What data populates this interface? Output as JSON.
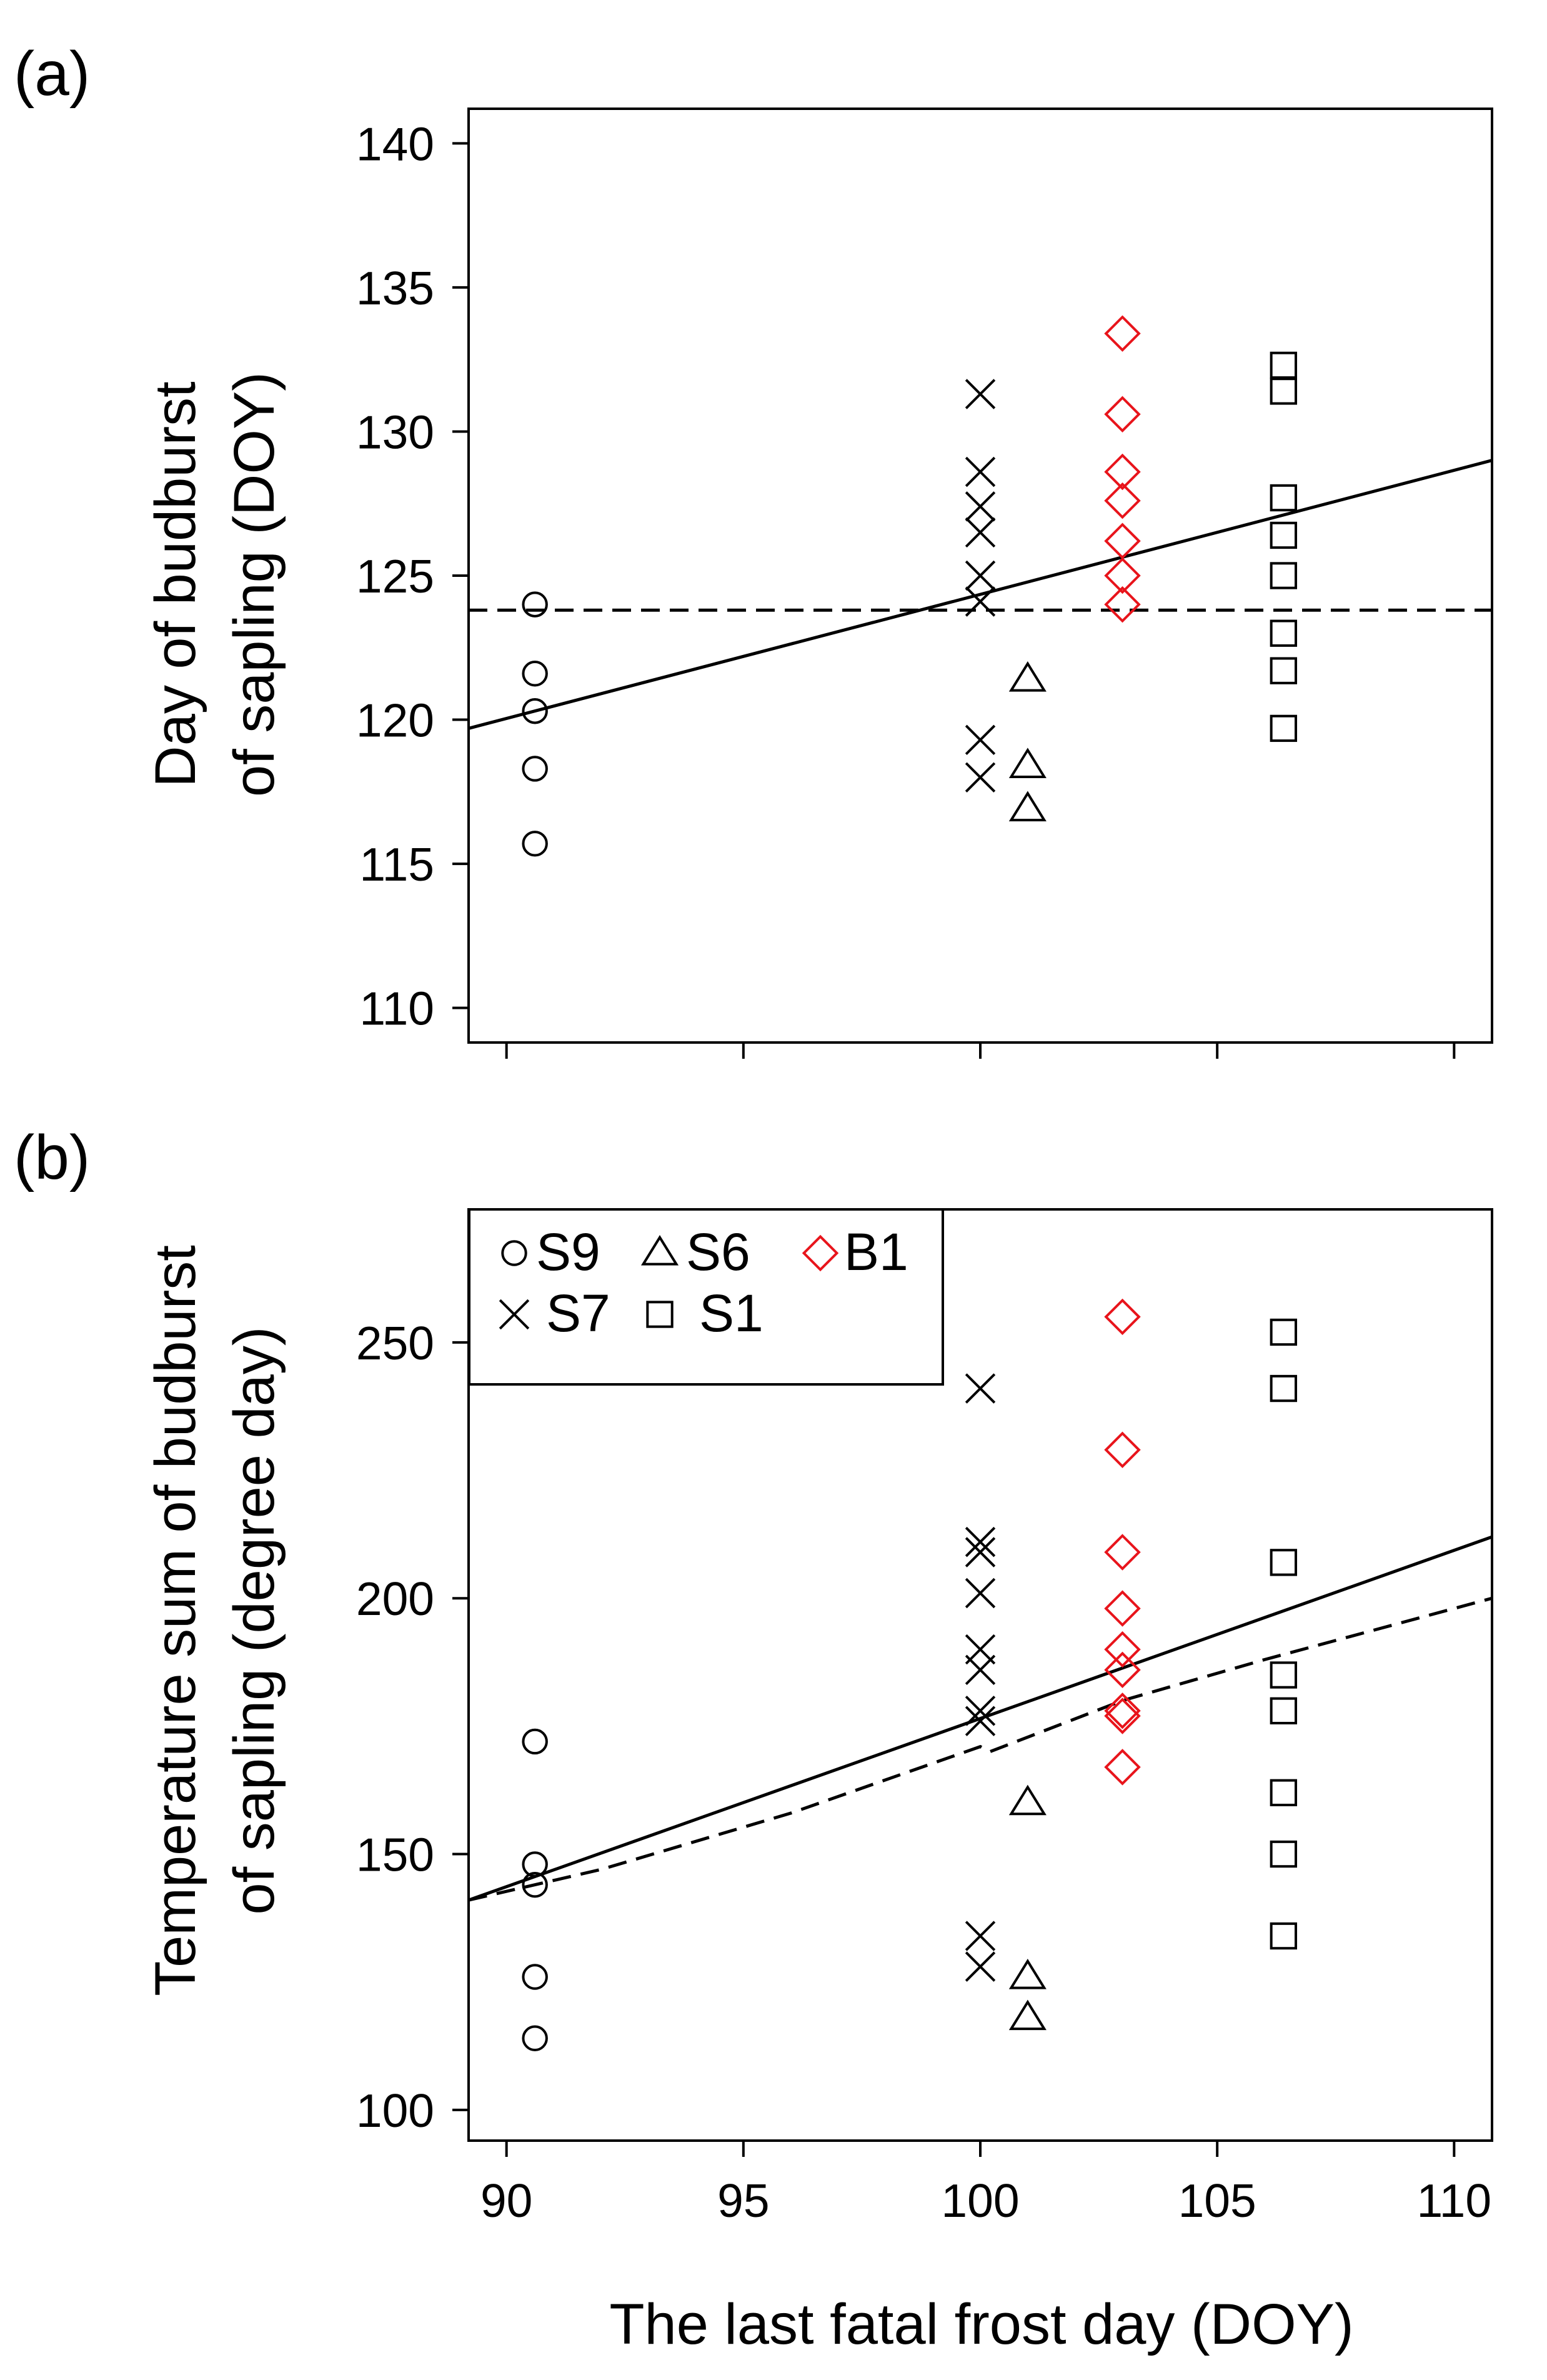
{
  "chart_data": [
    {
      "type": "scatter",
      "panel_label": "(a)",
      "ylabel_line1": "Day of budburst",
      "ylabel_line2": "of sapling (DOY)",
      "xlabel": "",
      "xlim": [
        89.2,
        110.8
      ],
      "ylim": [
        108.8,
        141.2
      ],
      "xticks": [
        90,
        95,
        100,
        105,
        110
      ],
      "yticks": [
        110,
        115,
        120,
        125,
        130,
        135,
        140
      ],
      "ytick_labels": [
        "110",
        "115",
        "120",
        "125",
        "130",
        "135",
        "140"
      ],
      "series": [
        {
          "name": "S9",
          "marker": "circle",
          "color": "#000000",
          "x": 90.6,
          "values": [
            124.0,
            121.6,
            120.3,
            118.3,
            115.7
          ]
        },
        {
          "name": "S7",
          "marker": "cross",
          "color": "#000000",
          "x": 100.0,
          "values": [
            131.3,
            128.6,
            127.4,
            126.5,
            125.0,
            124.1,
            119.3,
            118.0
          ]
        },
        {
          "name": "S6",
          "marker": "triangle",
          "color": "#000000",
          "x": 101.0,
          "values": [
            121.4,
            118.4,
            116.9
          ]
        },
        {
          "name": "B1",
          "marker": "diamond",
          "color": "#e8141b",
          "x": 103.0,
          "values": [
            133.4,
            130.6,
            128.6,
            127.6,
            126.2,
            125.0,
            124.0
          ]
        },
        {
          "name": "S1",
          "marker": "square",
          "color": "#000000",
          "x": 106.4,
          "values": [
            132.3,
            131.4,
            127.7,
            126.4,
            125.0,
            123.0,
            121.7,
            119.7
          ]
        }
      ],
      "lines": [
        {
          "name": "solid fit",
          "style": "solid",
          "x": [
            89.2,
            110.8
          ],
          "y": [
            119.7,
            129.0
          ]
        },
        {
          "name": "dashed fit",
          "style": "dashed",
          "x": [
            89.2,
            110.8
          ],
          "y": [
            123.8,
            123.8
          ]
        }
      ]
    },
    {
      "type": "scatter",
      "panel_label": "(b)",
      "ylabel_line1": "Temperature sum of budburst",
      "ylabel_line2": "of sapling (degree day)",
      "xlabel": "The last fatal frost day (DOY)",
      "xlim": [
        89.2,
        110.8
      ],
      "ylim": [
        94,
        276
      ],
      "xticks": [
        90,
        95,
        100,
        105,
        110
      ],
      "xtick_labels": [
        "90",
        "95",
        "100",
        "105",
        "110"
      ],
      "yticks": [
        100,
        150,
        200,
        250
      ],
      "ytick_labels": [
        "100",
        "150",
        "200",
        "250"
      ],
      "series": [
        {
          "name": "S9",
          "marker": "circle",
          "color": "#000000",
          "x": 90.6,
          "values": [
            172,
            148,
            144,
            126,
            114
          ]
        },
        {
          "name": "S7",
          "marker": "cross",
          "color": "#000000",
          "x": 100.0,
          "values": [
            241,
            211,
            209,
            201,
            190,
            186,
            178,
            176,
            134,
            128
          ]
        },
        {
          "name": "S6",
          "marker": "triangle",
          "color": "#000000",
          "x": 101.0,
          "values": [
            160,
            126,
            118
          ]
        },
        {
          "name": "B1",
          "marker": "diamond",
          "color": "#e8141b",
          "x": 103.0,
          "values": [
            255,
            229,
            209,
            198,
            190,
            186,
            178,
            177,
            167
          ]
        },
        {
          "name": "S1",
          "marker": "square",
          "color": "#000000",
          "x": 106.4,
          "values": [
            252,
            241,
            207,
            185,
            178,
            162,
            150,
            134
          ]
        }
      ],
      "lines": [
        {
          "name": "solid fit",
          "style": "solid",
          "x": [
            89.2,
            110.8
          ],
          "y": [
            141,
            212
          ]
        },
        {
          "name": "dashed fit",
          "style": "dashed",
          "x": [
            89.2,
            92,
            96,
            100,
            100.2,
            103,
            106,
            110.8
          ],
          "y": [
            141,
            147,
            158,
            171,
            170,
            180,
            188,
            200
          ]
        }
      ],
      "legend": {
        "placement": "top-left",
        "entries": [
          {
            "label": "S9",
            "marker": "circle",
            "color": "#000000"
          },
          {
            "label": "S6",
            "marker": "triangle",
            "color": "#000000"
          },
          {
            "label": "B1",
            "marker": "diamond",
            "color": "#e8141b"
          },
          {
            "label": "S7",
            "marker": "cross",
            "color": "#000000"
          },
          {
            "label": "S1",
            "marker": "square",
            "color": "#000000"
          }
        ]
      }
    }
  ]
}
